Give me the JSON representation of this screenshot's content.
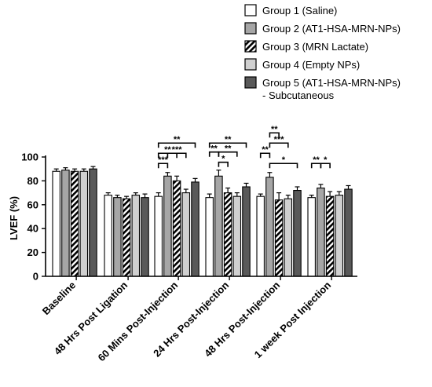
{
  "chart_data": {
    "type": "bar",
    "title": "",
    "xlabel": "",
    "ylabel": "LVEF (%)",
    "ylim": [
      0,
      100
    ],
    "yticks": [
      0,
      20,
      40,
      60,
      80,
      100
    ],
    "grid": false,
    "legend_position": "top-right",
    "categories": [
      "Baseline",
      "48 Hrs Post Ligation",
      "60 Mins Post-Injection",
      "24 Hrs Post-Injection",
      "48 Hrs Post-Injection",
      "1 week Post Injection"
    ],
    "series": [
      {
        "name": "Group 1 (Saline)",
        "pattern": "white",
        "values": [
          88,
          68,
          67,
          66,
          67,
          66
        ],
        "errors": [
          2,
          2,
          3,
          3,
          2,
          2
        ]
      },
      {
        "name": "Group 2 (AT1-HSA-MRN-NPs)",
        "pattern": "gray",
        "values": [
          89,
          66,
          84,
          84,
          83,
          74
        ],
        "errors": [
          2,
          2,
          3,
          5,
          4,
          3
        ]
      },
      {
        "name": "Group 3 (MRN Lactate)",
        "pattern": "hatch",
        "values": [
          88,
          65,
          80,
          70,
          64,
          67
        ],
        "errors": [
          2,
          2,
          4,
          4,
          6,
          4
        ]
      },
      {
        "name": "Group 4 (Empty NPs)",
        "pattern": "lightgray",
        "values": [
          88,
          68,
          70,
          67,
          65,
          68
        ],
        "errors": [
          2,
          2,
          3,
          3,
          3,
          3
        ]
      },
      {
        "name": "Group 5 (AT1-HSA-MRN-NPs) - Subcutaneous",
        "name_lines": [
          "Group 5 (AT1-HSA-MRN-NPs)",
          "- Subcutaneous"
        ],
        "pattern": "darkgray",
        "values": [
          90,
          66,
          79,
          75,
          72,
          73
        ],
        "errors": [
          2,
          3,
          3,
          3,
          3,
          3
        ]
      }
    ],
    "significance": [
      {
        "category": 2,
        "from": 0,
        "to": 1,
        "label": "***",
        "level": 0
      },
      {
        "category": 2,
        "from": 0,
        "to": 2,
        "label": "**",
        "level": 1
      },
      {
        "category": 2,
        "from": 0,
        "to": 4,
        "label": "**",
        "level": 2
      },
      {
        "category": 2,
        "from": 1,
        "to": 3,
        "label": "***",
        "level": 1
      },
      {
        "category": 3,
        "from": 0,
        "to": 1,
        "label": "**",
        "level": 1
      },
      {
        "category": 3,
        "from": 1,
        "to": 2,
        "label": "*",
        "level": 0
      },
      {
        "category": 3,
        "from": 1,
        "to": 3,
        "label": "**",
        "level": 1
      },
      {
        "category": 3,
        "from": 0,
        "to": 4,
        "label": "**",
        "level": 2
      },
      {
        "category": 4,
        "from": 0,
        "to": 1,
        "label": "**",
        "level": 1
      },
      {
        "category": 4,
        "from": 1,
        "to": 2,
        "label": "**",
        "level": 3
      },
      {
        "category": 4,
        "from": 1,
        "to": 3,
        "label": "***",
        "level": 2
      },
      {
        "category": 4,
        "from": 1,
        "to": 4,
        "label": "*",
        "level": 0
      },
      {
        "category": 5,
        "from": 0,
        "to": 1,
        "label": "**",
        "level": 0
      },
      {
        "category": 5,
        "from": 1,
        "to": 2,
        "label": "*",
        "level": 0
      }
    ]
  }
}
